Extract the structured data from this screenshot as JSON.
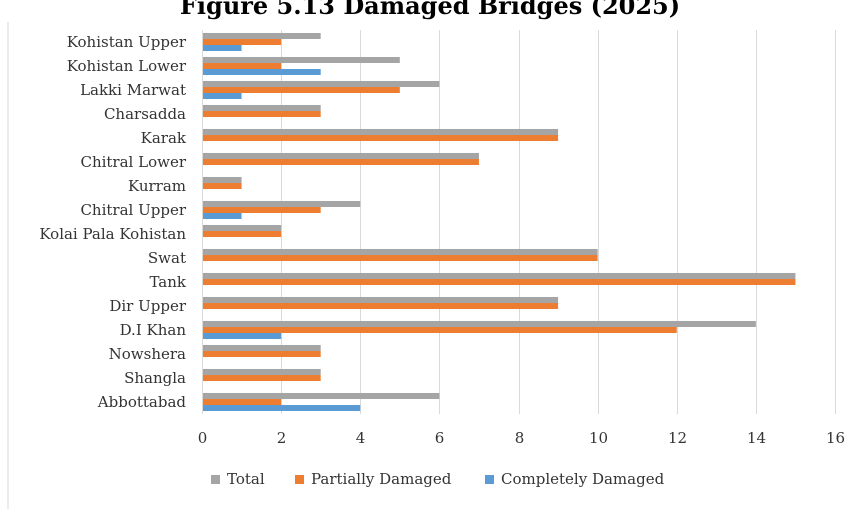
{
  "title": "Figure 5.13 Damaged Bridges (2025)",
  "chart_data": {
    "type": "bar",
    "orientation": "horizontal",
    "title": "Figure 5.13 Damaged Bridges (2025)",
    "categories": [
      "Abbottabad",
      "Shangla",
      "Nowshera",
      "D.I Khan",
      "Dir Upper",
      "Tank",
      "Swat",
      "Kolai Pala Kohistan",
      "Chitral Upper",
      "Kurram",
      "Chitral Lower",
      "Karak",
      "Charsadda",
      "Lakki Marwat",
      "Kohistan Lower",
      "Kohistan Upper"
    ],
    "series": [
      {
        "name": "Total",
        "color": "#A5A5A5",
        "values": [
          6,
          3,
          3,
          14,
          9,
          15,
          10,
          2,
          4,
          1,
          7,
          9,
          3,
          6,
          5,
          3
        ]
      },
      {
        "name": "Partially Damaged",
        "color": "#ED7D31",
        "values": [
          2,
          3,
          3,
          12,
          9,
          15,
          10,
          2,
          3,
          1,
          7,
          9,
          3,
          5,
          2,
          2
        ]
      },
      {
        "name": "Completely Damaged",
        "color": "#5B9BD5",
        "values": [
          4,
          0,
          0,
          2,
          0,
          0,
          0,
          0,
          1,
          0,
          0,
          0,
          0,
          1,
          3,
          1
        ]
      }
    ],
    "xlim": [
      0,
      16
    ],
    "xticks": [
      "0",
      "2",
      "4",
      "6",
      "8",
      "10",
      "12",
      "14",
      "16"
    ],
    "grid": true,
    "legend_position": "bottom",
    "gridline_color": "#D9D9D9",
    "text_color": "#333333"
  }
}
